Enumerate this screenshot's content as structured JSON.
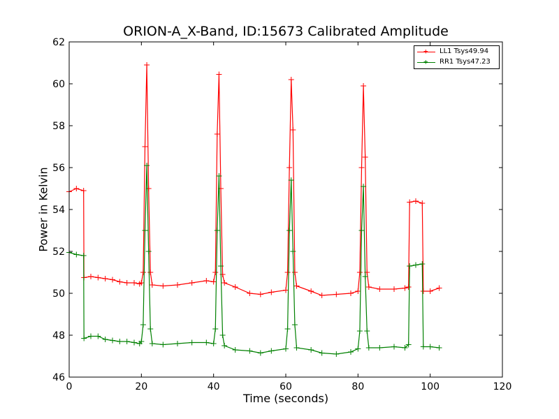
{
  "chart_data": {
    "type": "line",
    "title": "ORION-A_X-Band, ID:15673 Calibrated Amplitude",
    "xlabel": "Time (seconds)",
    "ylabel": "Power in Kelvin",
    "xlim": [
      0,
      120
    ],
    "ylim": [
      46,
      62
    ],
    "x_ticks": [
      "0",
      "20",
      "40",
      "60",
      "80",
      "100",
      "120"
    ],
    "y_ticks": [
      "46",
      "48",
      "50",
      "52",
      "54",
      "56",
      "58",
      "60",
      "62"
    ],
    "grid": false,
    "legend_position": "top-right",
    "marker": "+",
    "series": [
      {
        "name": "LL1 Tsys49.94",
        "color": "#ff0000",
        "points": [
          [
            0,
            54.85
          ],
          [
            2,
            55.0
          ],
          [
            4,
            54.9
          ],
          [
            4.1,
            50.75
          ],
          [
            6,
            50.8
          ],
          [
            8,
            50.75
          ],
          [
            10,
            50.7
          ],
          [
            12,
            50.65
          ],
          [
            14,
            50.55
          ],
          [
            16,
            50.5
          ],
          [
            18,
            50.5
          ],
          [
            19.5,
            50.45
          ],
          [
            20,
            50.5
          ],
          [
            20.5,
            51.0
          ],
          [
            21,
            57.0
          ],
          [
            21.5,
            60.9
          ],
          [
            22,
            55.0
          ],
          [
            22.5,
            51.0
          ],
          [
            23,
            50.4
          ],
          [
            26,
            50.35
          ],
          [
            30,
            50.4
          ],
          [
            34,
            50.5
          ],
          [
            38,
            50.6
          ],
          [
            40,
            50.55
          ],
          [
            40.5,
            51.0
          ],
          [
            41,
            57.6
          ],
          [
            41.5,
            60.45
          ],
          [
            42,
            55.0
          ],
          [
            42.5,
            50.9
          ],
          [
            43,
            50.5
          ],
          [
            46,
            50.3
          ],
          [
            50,
            50.0
          ],
          [
            53,
            49.95
          ],
          [
            56,
            50.05
          ],
          [
            60,
            50.15
          ],
          [
            60.5,
            51.0
          ],
          [
            61,
            56.0
          ],
          [
            61.5,
            60.2
          ],
          [
            62,
            57.8
          ],
          [
            62.5,
            51.0
          ],
          [
            63,
            50.35
          ],
          [
            67,
            50.1
          ],
          [
            70,
            49.9
          ],
          [
            74,
            49.95
          ],
          [
            78,
            50.0
          ],
          [
            80,
            50.1
          ],
          [
            80.5,
            51.0
          ],
          [
            81,
            56.0
          ],
          [
            81.5,
            59.9
          ],
          [
            82,
            56.5
          ],
          [
            82.5,
            51.0
          ],
          [
            83,
            50.3
          ],
          [
            86,
            50.2
          ],
          [
            90,
            50.2
          ],
          [
            93,
            50.25
          ],
          [
            94,
            50.3
          ],
          [
            94.3,
            54.35
          ],
          [
            96,
            54.4
          ],
          [
            97.8,
            54.3
          ],
          [
            98.1,
            50.1
          ],
          [
            100,
            50.1
          ],
          [
            102.5,
            50.25
          ]
        ]
      },
      {
        "name": "RR1 Tsys47.23",
        "color": "#008000",
        "points": [
          [
            0,
            51.95
          ],
          [
            2,
            51.85
          ],
          [
            4,
            51.8
          ],
          [
            4.1,
            47.85
          ],
          [
            6,
            47.95
          ],
          [
            8,
            47.95
          ],
          [
            10,
            47.8
          ],
          [
            12,
            47.75
          ],
          [
            14,
            47.7
          ],
          [
            16,
            47.7
          ],
          [
            18,
            47.65
          ],
          [
            19.5,
            47.6
          ],
          [
            20,
            47.7
          ],
          [
            20.5,
            48.5
          ],
          [
            21,
            53.0
          ],
          [
            21.5,
            56.1
          ],
          [
            22,
            52.0
          ],
          [
            22.5,
            48.3
          ],
          [
            23,
            47.6
          ],
          [
            26,
            47.55
          ],
          [
            30,
            47.6
          ],
          [
            34,
            47.65
          ],
          [
            38,
            47.65
          ],
          [
            40,
            47.6
          ],
          [
            40.5,
            48.3
          ],
          [
            41,
            53.0
          ],
          [
            41.5,
            55.6
          ],
          [
            42,
            51.3
          ],
          [
            42.5,
            48.0
          ],
          [
            43,
            47.5
          ],
          [
            46,
            47.3
          ],
          [
            50,
            47.25
          ],
          [
            53,
            47.15
          ],
          [
            56,
            47.25
          ],
          [
            60,
            47.35
          ],
          [
            60.5,
            48.3
          ],
          [
            61,
            53.0
          ],
          [
            61.5,
            55.4
          ],
          [
            62,
            52.0
          ],
          [
            62.5,
            48.5
          ],
          [
            63,
            47.4
          ],
          [
            67,
            47.3
          ],
          [
            70,
            47.15
          ],
          [
            74,
            47.1
          ],
          [
            78,
            47.2
          ],
          [
            80,
            47.35
          ],
          [
            80.5,
            48.2
          ],
          [
            81,
            53.0
          ],
          [
            81.5,
            55.1
          ],
          [
            82,
            50.8
          ],
          [
            82.5,
            48.2
          ],
          [
            83,
            47.4
          ],
          [
            86,
            47.4
          ],
          [
            90,
            47.45
          ],
          [
            93,
            47.4
          ],
          [
            94,
            47.55
          ],
          [
            94.3,
            51.3
          ],
          [
            96,
            51.35
          ],
          [
            97.8,
            51.4
          ],
          [
            98.1,
            47.45
          ],
          [
            100,
            47.45
          ],
          [
            102.5,
            47.4
          ]
        ]
      }
    ]
  }
}
